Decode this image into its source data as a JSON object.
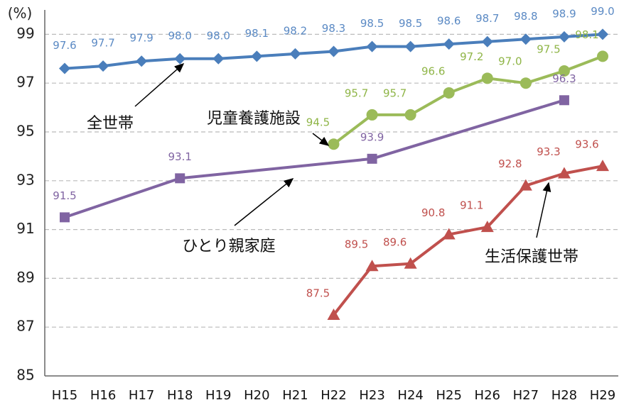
{
  "chart_data": {
    "type": "line",
    "y_label": "(%)",
    "categories": [
      "H15",
      "H16",
      "H17",
      "H18",
      "H19",
      "H20",
      "H21",
      "H22",
      "H23",
      "H24",
      "H25",
      "H26",
      "H27",
      "H28",
      "H29"
    ],
    "ylim": [
      85,
      100
    ],
    "yticks": [
      85,
      87,
      89,
      91,
      93,
      95,
      97,
      99
    ],
    "grid": true,
    "series": [
      {
        "name": "全世帯",
        "color": "#4a7ebb",
        "label_color": "#5b8ac4",
        "marker": "diamond",
        "values": [
          97.6,
          97.7,
          97.9,
          98.0,
          98.0,
          98.1,
          98.2,
          98.3,
          98.5,
          98.5,
          98.6,
          98.7,
          98.8,
          98.9,
          99.0
        ],
        "value_labels": [
          "97.6",
          "97.7",
          "97.9",
          "98.0",
          "98.0",
          "98.1",
          "98.2",
          "98.3",
          "98.5",
          "98.5",
          "98.6",
          "98.7",
          "98.8",
          "98.9",
          "99.0"
        ]
      },
      {
        "name": "児童養護施設",
        "color": "#9bbb59",
        "label_color": "#8fb547",
        "marker": "circle",
        "values": [
          null,
          null,
          null,
          null,
          null,
          null,
          null,
          94.5,
          95.7,
          95.7,
          96.6,
          97.2,
          97.0,
          97.5,
          98.1
        ],
        "value_labels": [
          null,
          null,
          null,
          null,
          null,
          null,
          null,
          "94.5",
          "95.7",
          "95.7",
          "96.6",
          "97.2",
          "97.0",
          "97.5",
          "98.1"
        ]
      },
      {
        "name": "ひとり親家庭",
        "color": "#8064a2",
        "label_color": "#8064a2",
        "marker": "square",
        "x": [
          "H15",
          "H18",
          "H23",
          "H28"
        ],
        "values": [
          91.5,
          93.1,
          93.9,
          96.3
        ],
        "value_labels": [
          "91.5",
          "93.1",
          "93.9",
          "96.3"
        ]
      },
      {
        "name": "生活保護世帯",
        "color": "#c0504d",
        "label_color": "#c0504d",
        "marker": "triangle",
        "values": [
          null,
          null,
          null,
          null,
          null,
          null,
          null,
          87.5,
          89.5,
          89.6,
          90.8,
          91.1,
          92.8,
          93.3,
          93.6
        ],
        "value_labels": [
          null,
          null,
          null,
          null,
          null,
          null,
          null,
          "87.5",
          "89.5",
          "89.6",
          "90.8",
          "91.1",
          "92.8",
          "93.3",
          "93.6"
        ]
      }
    ]
  }
}
